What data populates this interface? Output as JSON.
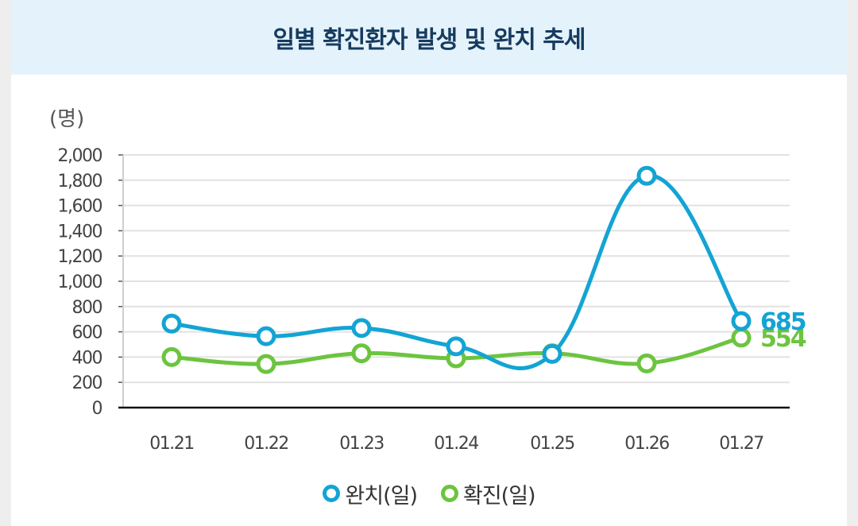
{
  "header": {
    "title": "일별 확진환자 발생 및 완치 추세"
  },
  "colors": {
    "recovered": "#13a4d4",
    "confirmed": "#6cc43f",
    "header_bg": "#e4f3fb"
  },
  "chart_data": {
    "type": "line",
    "title": "일별 확진환자 발생 및 완치 추세",
    "unit_label": "(명)",
    "categories": [
      "01.21",
      "01.22",
      "01.23",
      "01.24",
      "01.25",
      "01.26",
      "01.27"
    ],
    "ylim": [
      0,
      2000
    ],
    "yticks": [
      "0",
      "200",
      "400",
      "600",
      "800",
      "1,000",
      "1,200",
      "1,400",
      "1,600",
      "1,800",
      "2,000"
    ],
    "grid": true,
    "legend_position": "bottom",
    "series": [
      {
        "name": "완치(일)",
        "color": "#13a4d4",
        "values": [
          665,
          565,
          630,
          485,
          425,
          1835,
          685
        ],
        "end_label": "685"
      },
      {
        "name": "확진(일)",
        "color": "#6cc43f",
        "values": [
          400,
          345,
          430,
          390,
          430,
          350,
          554
        ],
        "end_label": "554"
      }
    ]
  },
  "legend": [
    {
      "label": "완치(일)",
      "color": "#13a4d4"
    },
    {
      "label": "확진(일)",
      "color": "#6cc43f"
    }
  ]
}
